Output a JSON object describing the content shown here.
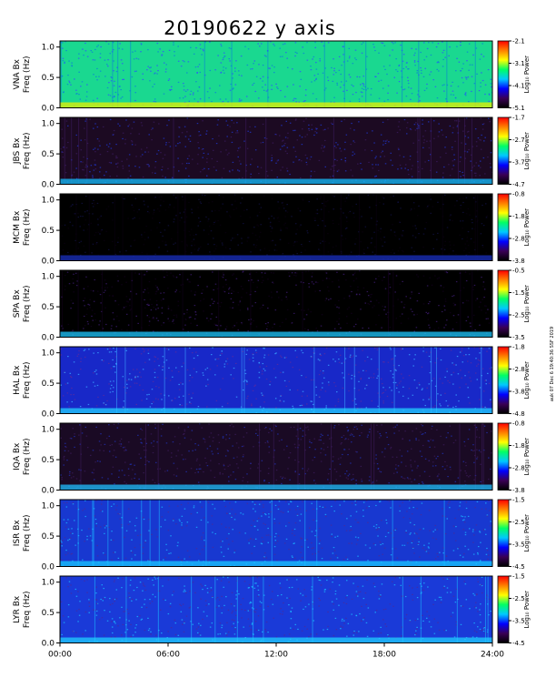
{
  "title": "20190622 y axis",
  "side_note": "auk 07 Dec 6 19:40:36 SSF 2019",
  "cbar_label": "Log₁₀ Power",
  "freq_label": "Freq (Hz)",
  "chart_data": {
    "type": "heatmap",
    "title": "20190622 y axis",
    "x_ticks": [
      "00:00",
      "06:00",
      "12:00",
      "18:00",
      "24:00"
    ],
    "xlim": [
      "00:00",
      "24:00"
    ],
    "y_ticks": [
      "0.0",
      "0.5",
      "1.0"
    ],
    "ylim": [
      0,
      1.1
    ],
    "colormap": [
      "#000000",
      "#3a0055",
      "#0000ff",
      "#00c8ff",
      "#00ff64",
      "#ffff00",
      "#ff8000",
      "#ff0000"
    ],
    "panels": [
      {
        "station": "VNA Bx",
        "cbar_ticks": [
          "-2.1",
          "-3.1",
          "-4.1",
          "-5.1"
        ],
        "cbar_range": [
          -5.1,
          -2.1
        ]
      },
      {
        "station": "JBS Bx",
        "cbar_ticks": [
          "-1.7",
          "-2.7",
          "-3.7",
          "-4.7"
        ],
        "cbar_range": [
          -4.7,
          -1.7
        ]
      },
      {
        "station": "MCM Bx",
        "cbar_ticks": [
          "-0.8",
          "-1.8",
          "-2.8",
          "-3.8"
        ],
        "cbar_range": [
          -3.8,
          -0.8
        ]
      },
      {
        "station": "SPA Bx",
        "cbar_ticks": [
          "-0.5",
          "-1.5",
          "-2.5",
          "-3.5"
        ],
        "cbar_range": [
          -3.5,
          -0.5
        ]
      },
      {
        "station": "HAL Bx",
        "cbar_ticks": [
          "-1.8",
          "-2.8",
          "-3.8",
          "-4.8"
        ],
        "cbar_range": [
          -4.8,
          -1.8
        ]
      },
      {
        "station": "IQA Bx",
        "cbar_ticks": [
          "-0.8",
          "-1.8",
          "-2.8",
          "-3.8"
        ],
        "cbar_range": [
          -3.8,
          -0.8
        ]
      },
      {
        "station": "ISR Bx",
        "cbar_ticks": [
          "-1.5",
          "-2.5",
          "-3.5",
          "-4.5"
        ],
        "cbar_range": [
          -4.5,
          -1.5
        ]
      },
      {
        "station": "LYR Bx",
        "cbar_ticks": [
          "-1.5",
          "-2.5",
          "-3.5",
          "-4.5"
        ],
        "cbar_range": [
          -4.5,
          -1.5
        ]
      }
    ]
  },
  "panel_styles": [
    {
      "bg": "#1ad890",
      "noise": "#0a7fd8",
      "speck": "#3050ff",
      "floor": "#e8f000"
    },
    {
      "bg": "#1c0a22",
      "noise": "#3a1a5c",
      "speck": "#1f35c8",
      "floor": "#16c0ff"
    },
    {
      "bg": "#000000",
      "noise": "#0a0010",
      "speck": "#101040",
      "floor": "#1a30c0"
    },
    {
      "bg": "#000000",
      "noise": "#12001c",
      "speck": "#3a1a6c",
      "floor": "#1ec8ff"
    },
    {
      "bg": "#1828c8",
      "noise": "#3aa0ff",
      "speck": "#5a2aa0",
      "floor": "#22d0ff"
    },
    {
      "bg": "#1a0a24",
      "noise": "#3a1a58",
      "speck": "#2030b0",
      "floor": "#20c0ff"
    },
    {
      "bg": "#1838d0",
      "noise": "#1ab0ff",
      "speck": "#4a2a9a",
      "floor": "#18c8ff"
    },
    {
      "bg": "#1a3ad8",
      "noise": "#1ab8ff",
      "speck": "#4a2a9c",
      "floor": "#20d0ff"
    }
  ]
}
